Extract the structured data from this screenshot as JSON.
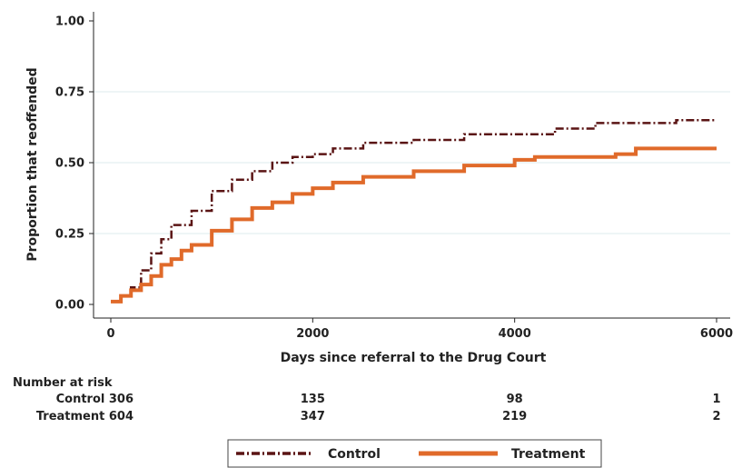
{
  "chart_data": {
    "type": "line",
    "title": "",
    "xlabel": "Days since referral to the Drug Court",
    "ylabel": "Proportion that reoffended",
    "xlim": [
      0,
      6000
    ],
    "ylim": [
      0,
      1
    ],
    "x_ticks": [
      {
        "value": 0,
        "label": "0"
      },
      {
        "value": 2000,
        "label": "2000"
      },
      {
        "value": 4000,
        "label": "4000"
      },
      {
        "value": 6000,
        "label": "6000"
      }
    ],
    "y_ticks": [
      {
        "value": 0,
        "label": "0.00"
      },
      {
        "value": 0.25,
        "label": "0.25"
      },
      {
        "value": 0.5,
        "label": "0.50"
      },
      {
        "value": 0.75,
        "label": "0.75"
      },
      {
        "value": 1,
        "label": "1.00"
      }
    ],
    "grid": true,
    "legend_position": "bottom",
    "series": [
      {
        "name": "Control",
        "color": "#5a1414",
        "line_style": "dash-dot",
        "points": [
          [
            0,
            0.01
          ],
          [
            100,
            0.03
          ],
          [
            200,
            0.06
          ],
          [
            300,
            0.12
          ],
          [
            400,
            0.18
          ],
          [
            500,
            0.23
          ],
          [
            600,
            0.28
          ],
          [
            800,
            0.33
          ],
          [
            1000,
            0.4
          ],
          [
            1200,
            0.44
          ],
          [
            1400,
            0.47
          ],
          [
            1600,
            0.5
          ],
          [
            1800,
            0.52
          ],
          [
            2000,
            0.53
          ],
          [
            2200,
            0.55
          ],
          [
            2500,
            0.57
          ],
          [
            3000,
            0.58
          ],
          [
            3500,
            0.6
          ],
          [
            4000,
            0.6
          ],
          [
            4400,
            0.62
          ],
          [
            4800,
            0.64
          ],
          [
            5200,
            0.64
          ],
          [
            5600,
            0.65
          ],
          [
            6000,
            0.65
          ]
        ]
      },
      {
        "name": "Treatment",
        "color": "#e06a2a",
        "line_style": "solid",
        "points": [
          [
            0,
            0.01
          ],
          [
            100,
            0.03
          ],
          [
            200,
            0.05
          ],
          [
            300,
            0.07
          ],
          [
            400,
            0.1
          ],
          [
            500,
            0.14
          ],
          [
            600,
            0.16
          ],
          [
            700,
            0.19
          ],
          [
            800,
            0.21
          ],
          [
            1000,
            0.26
          ],
          [
            1200,
            0.3
          ],
          [
            1400,
            0.34
          ],
          [
            1600,
            0.36
          ],
          [
            1800,
            0.39
          ],
          [
            2000,
            0.41
          ],
          [
            2200,
            0.43
          ],
          [
            2500,
            0.45
          ],
          [
            3000,
            0.47
          ],
          [
            3500,
            0.49
          ],
          [
            4000,
            0.51
          ],
          [
            4200,
            0.52
          ],
          [
            5000,
            0.53
          ],
          [
            5200,
            0.55
          ],
          [
            6000,
            0.55
          ]
        ]
      }
    ],
    "risk_table": {
      "title": "Number at risk",
      "rows": [
        {
          "label": "Control 306",
          "values": [
            "135",
            "98",
            "1"
          ]
        },
        {
          "label": "Treatment 604",
          "values": [
            "347",
            "219",
            "2"
          ]
        }
      ]
    }
  }
}
